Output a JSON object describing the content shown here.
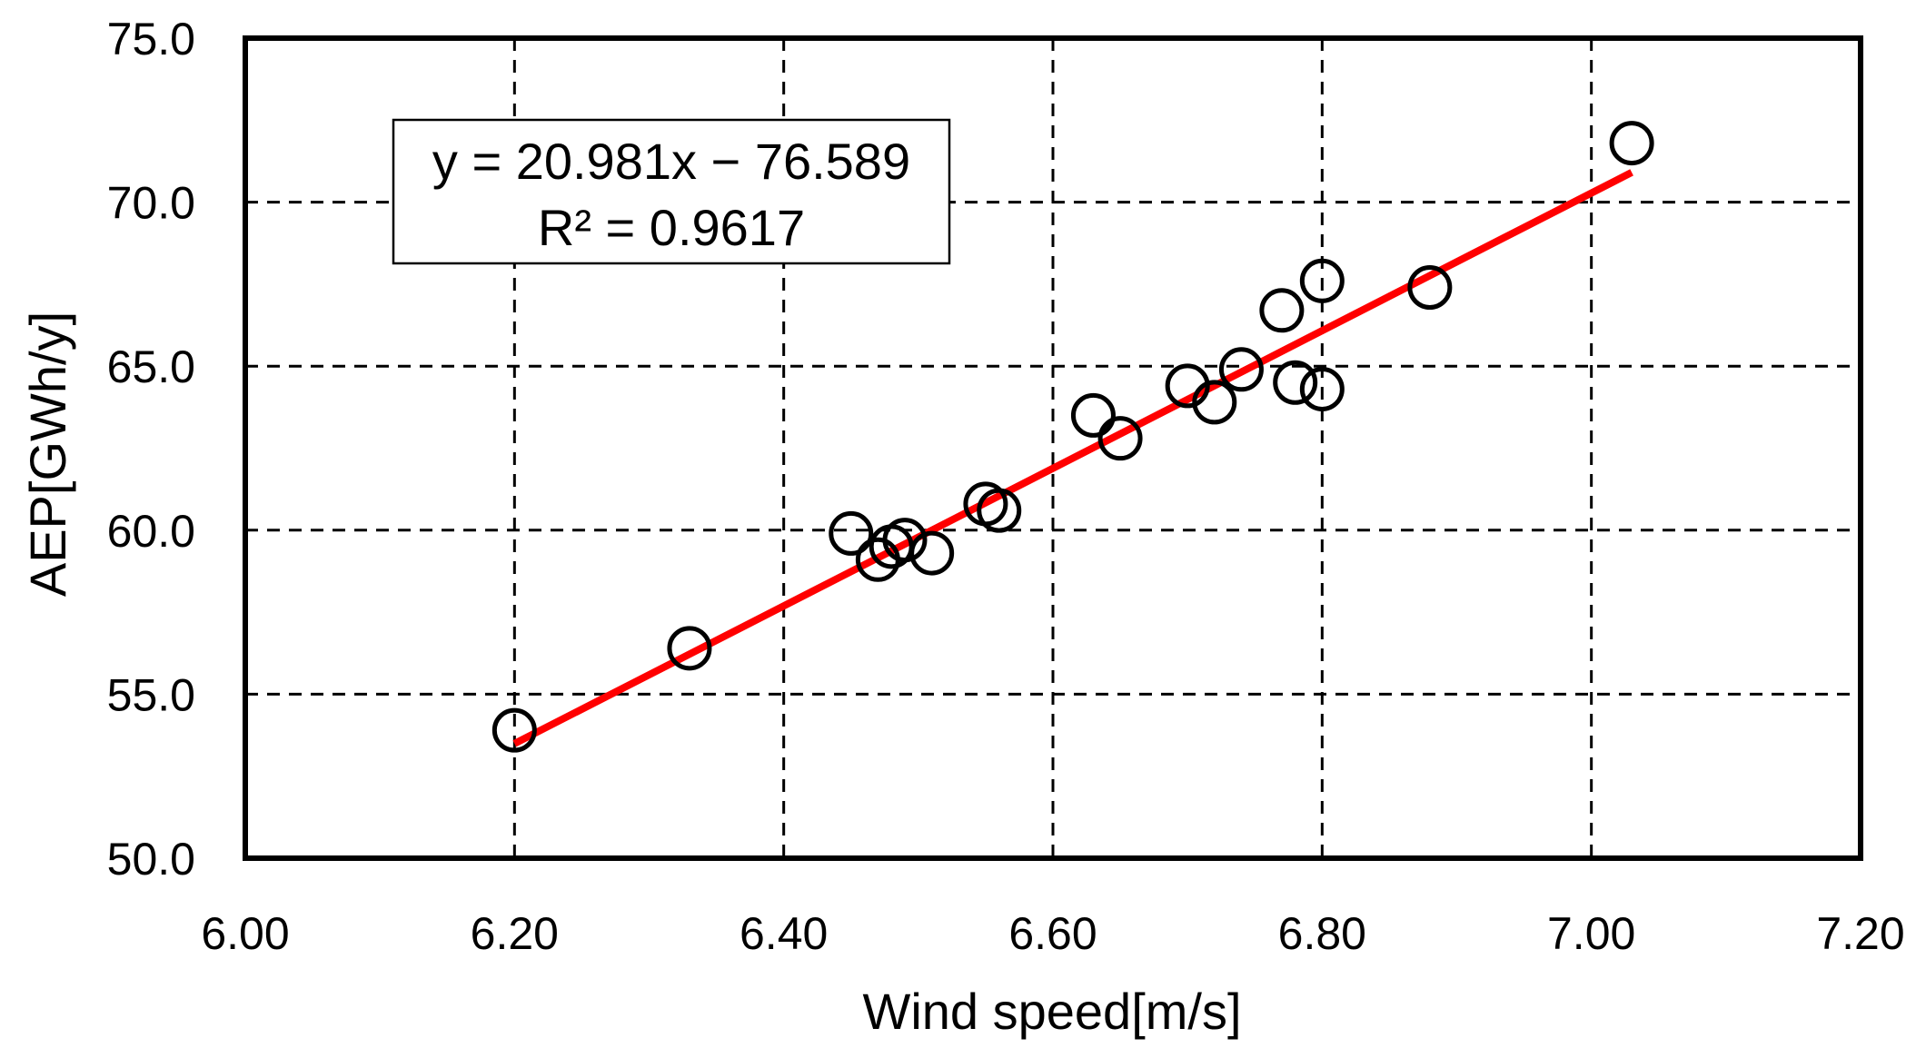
{
  "chart_data": {
    "type": "scatter",
    "title": "",
    "xlabel": "Wind speed[m/s]",
    "ylabel": "AEP[GWh/y]",
    "xlim": [
      6.0,
      7.2
    ],
    "ylim": [
      50.0,
      75.0
    ],
    "xticks": [
      "6.00",
      "6.20",
      "6.40",
      "6.60",
      "6.80",
      "7.00",
      "7.20"
    ],
    "yticks": [
      "50.0",
      "55.0",
      "60.0",
      "65.0",
      "70.0",
      "75.0"
    ],
    "grid": true,
    "series": [
      {
        "name": "AEP",
        "marker": "open-circle",
        "points": [
          {
            "x": 6.2,
            "y": 53.9
          },
          {
            "x": 6.33,
            "y": 56.4
          },
          {
            "x": 6.45,
            "y": 59.9
          },
          {
            "x": 6.47,
            "y": 59.1
          },
          {
            "x": 6.48,
            "y": 59.5
          },
          {
            "x": 6.49,
            "y": 59.7
          },
          {
            "x": 6.51,
            "y": 59.3
          },
          {
            "x": 6.55,
            "y": 60.8
          },
          {
            "x": 6.56,
            "y": 60.6
          },
          {
            "x": 6.63,
            "y": 63.5
          },
          {
            "x": 6.65,
            "y": 62.8
          },
          {
            "x": 6.7,
            "y": 64.4
          },
          {
            "x": 6.72,
            "y": 63.9
          },
          {
            "x": 6.74,
            "y": 64.9
          },
          {
            "x": 6.77,
            "y": 66.7
          },
          {
            "x": 6.78,
            "y": 64.5
          },
          {
            "x": 6.8,
            "y": 67.6
          },
          {
            "x": 6.8,
            "y": 64.3
          },
          {
            "x": 6.88,
            "y": 67.4
          },
          {
            "x": 7.03,
            "y": 71.8
          }
        ]
      }
    ],
    "trendline": {
      "slope": 20.981,
      "intercept": -76.589,
      "x_range": [
        6.2,
        7.03
      ],
      "color": "#ff0000",
      "equation_label": "y = 20.981x − 76.589",
      "r2_label": "R² = 0.9617",
      "label_position": "top-left"
    },
    "colors": {
      "marker_stroke": "#000000",
      "grid": "#000000",
      "frame": "#000000"
    }
  }
}
